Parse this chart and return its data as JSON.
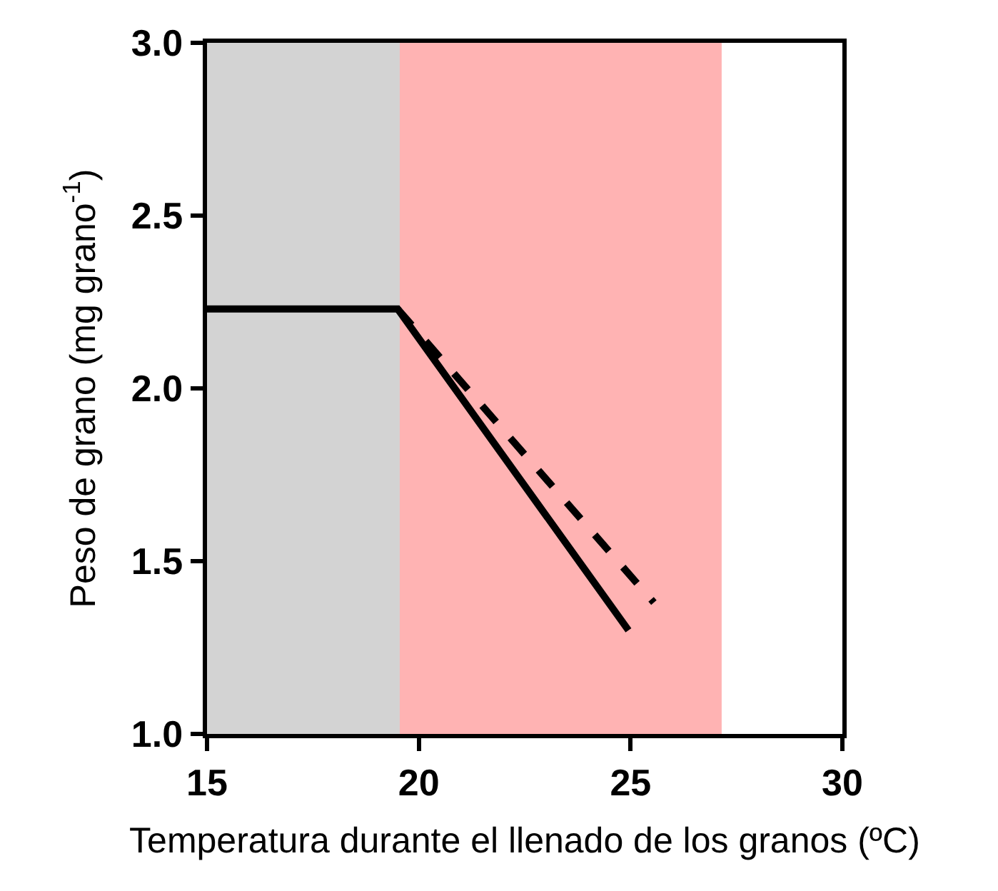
{
  "chart_data": {
    "type": "line",
    "xlabel": "Temperatura durante el llenado de los granos (ºC)",
    "ylabel": "Peso de grano (mg grano$^{-1}$)",
    "series": [
      {
        "color": "#000000",
        "x": [
          15,
          19.5,
          24.95
        ],
        "values": [
          2.23,
          2.23,
          1.3
        ],
        "line_style": "solid"
      },
      {
        "color": "#000000",
        "x": [
          19.5,
          25.55
        ],
        "values": [
          2.23,
          1.38
        ],
        "line_style": "dashed"
      }
    ],
    "bands": [
      {
        "axis": "x",
        "from": 15,
        "to": 19.55,
        "color": "#d3d3d3"
      },
      {
        "axis": "x",
        "from": 19.55,
        "to": 27.15,
        "color": "#ffb3b3"
      }
    ],
    "xlim": [
      15,
      30
    ],
    "xticks": [
      15,
      20,
      25,
      30
    ],
    "ylim": [
      1,
      3
    ],
    "yticks": [
      {
        "value": 1,
        "label": "1.0"
      },
      {
        "value": 1.5,
        "label": "1.5"
      },
      {
        "value": 2,
        "label": "2.0"
      },
      {
        "value": 2.5,
        "label": "2.5"
      },
      {
        "value": 3,
        "label": "3.0"
      }
    ],
    "grid": false,
    "marker": "none"
  }
}
